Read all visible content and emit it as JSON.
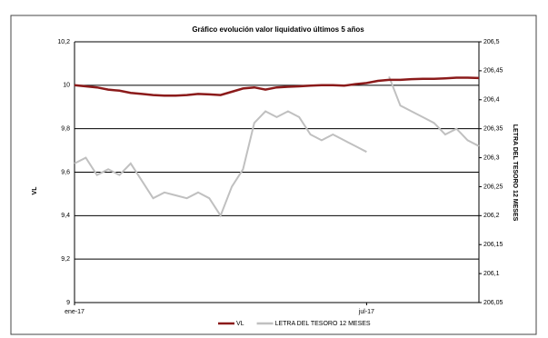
{
  "chart_data": {
    "type": "line",
    "title": "Gráfico evolución valor liquidativo últimos 5 años",
    "y_label": "VL",
    "y2_label": "LETRA DEL TESORO 12 MESES",
    "categories": [
      "ene-17",
      null,
      null,
      null,
      null,
      null,
      null,
      null,
      null,
      null,
      null,
      null,
      null,
      null,
      null,
      null,
      null,
      null,
      null,
      null,
      null,
      null,
      null,
      null,
      null,
      null,
      "jul-17",
      null,
      null,
      null,
      null,
      null,
      null,
      null,
      null,
      null,
      null
    ],
    "series": [
      {
        "name": "VL",
        "color": "#8b1a1a",
        "values": [
          10.0,
          9.995,
          9.99,
          9.98,
          9.975,
          9.965,
          9.96,
          9.955,
          9.952,
          9.952,
          9.955,
          9.96,
          9.958,
          9.955,
          9.97,
          9.985,
          9.99,
          9.98,
          9.99,
          9.993,
          9.995,
          9.998,
          10.0,
          10.0,
          9.998,
          10.005,
          10.01,
          10.02,
          10.025,
          10.025,
          10.028,
          10.03,
          10.03,
          10.032,
          10.035,
          10.035,
          10.033
        ]
      },
      {
        "name": "LETRA DEL TESORO 12 MESES",
        "color": "#c0c0c0",
        "axis": "y2",
        "values": [
          206.29,
          206.3,
          206.27,
          206.28,
          206.27,
          206.29,
          206.26,
          206.23,
          206.24,
          206.235,
          206.23,
          206.24,
          206.23,
          206.2,
          206.25,
          206.28,
          206.36,
          206.38,
          206.37,
          206.38,
          206.37,
          206.34,
          206.33,
          206.34,
          206.33,
          206.32,
          206.31,
          null,
          206.44,
          206.39,
          206.38,
          206.37,
          206.36,
          206.34,
          206.35,
          206.33,
          206.32
        ]
      }
    ],
    "ylim": [
      9,
      10.2
    ],
    "yticks": [
      9,
      {
        "value": 9.2,
        "label": "9,2"
      },
      {
        "value": 9.4,
        "label": "9,4"
      },
      {
        "value": 9.6,
        "label": "9,6"
      },
      {
        "value": 9.8,
        "label": "9,8"
      },
      10,
      {
        "value": 10.2,
        "label": "10,2"
      }
    ],
    "y2lim": [
      206.05,
      206.5
    ],
    "y2ticks": [
      {
        "value": 206.05,
        "label": "206,05"
      },
      {
        "value": 206.1,
        "label": "206,1"
      },
      {
        "value": 206.15,
        "label": "206,15"
      },
      {
        "value": 206.2,
        "label": "206,2"
      },
      {
        "value": 206.25,
        "label": "206,25"
      },
      {
        "value": 206.3,
        "label": "206,3"
      },
      {
        "value": 206.35,
        "label": "206,35"
      },
      {
        "value": 206.4,
        "label": "206,4"
      },
      {
        "value": 206.45,
        "label": "206,45"
      },
      {
        "value": 206.5,
        "label": "206,5"
      }
    ],
    "grid": true,
    "legend": "bottom"
  }
}
